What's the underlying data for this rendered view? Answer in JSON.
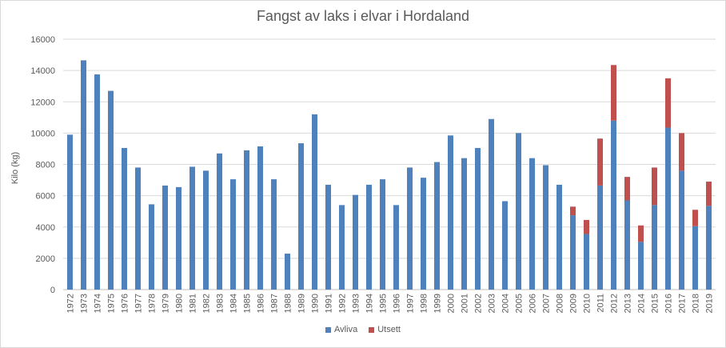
{
  "chart_data": {
    "type": "bar",
    "stacked": true,
    "title": "Fangst av laks i elvar i Hordaland",
    "xlabel": "",
    "ylabel": "Kilo (kg)",
    "ylim": [
      0,
      16000
    ],
    "yticks": [
      0,
      2000,
      4000,
      6000,
      8000,
      10000,
      12000,
      14000,
      16000
    ],
    "grid": true,
    "legend_position": "bottom",
    "categories": [
      "1972",
      "1973",
      "1974",
      "1975",
      "1976",
      "1977",
      "1978",
      "1979",
      "1980",
      "1981",
      "1982",
      "1983",
      "1984",
      "1985",
      "1986",
      "1987",
      "1988",
      "1989",
      "1990",
      "1991",
      "1992",
      "1993",
      "1994",
      "1995",
      "1996",
      "1997",
      "1998",
      "1999",
      "2000",
      "2001",
      "2002",
      "2003",
      "2004",
      "2005",
      "2006",
      "2007",
      "2008",
      "2009",
      "2010",
      "2011",
      "2012",
      "2013",
      "2014",
      "2015",
      "2016",
      "2017",
      "2018",
      "2019"
    ],
    "series": [
      {
        "name": "Avliva",
        "color": "#4f81bd",
        "values": [
          9900,
          14650,
          13750,
          12700,
          9050,
          7800,
          5450,
          6650,
          6550,
          7850,
          7600,
          8700,
          7050,
          8900,
          9150,
          7050,
          2300,
          9350,
          11200,
          6700,
          5400,
          6050,
          6700,
          7050,
          5400,
          7800,
          7150,
          8150,
          9850,
          8400,
          9050,
          10900,
          5650,
          10000,
          8400,
          7950,
          6700,
          4750,
          3550,
          6650,
          10800,
          5700,
          3050,
          5400,
          10350,
          7600,
          4050,
          5350
        ]
      },
      {
        "name": "Utsett",
        "color": "#c0504d",
        "values": [
          0,
          0,
          0,
          0,
          0,
          0,
          0,
          0,
          0,
          0,
          0,
          0,
          0,
          0,
          0,
          0,
          0,
          0,
          0,
          0,
          0,
          0,
          0,
          0,
          0,
          0,
          0,
          0,
          0,
          0,
          0,
          0,
          0,
          0,
          0,
          0,
          0,
          550,
          900,
          3000,
          3550,
          1500,
          1050,
          2400,
          3150,
          2400,
          1050,
          1550
        ]
      }
    ]
  }
}
